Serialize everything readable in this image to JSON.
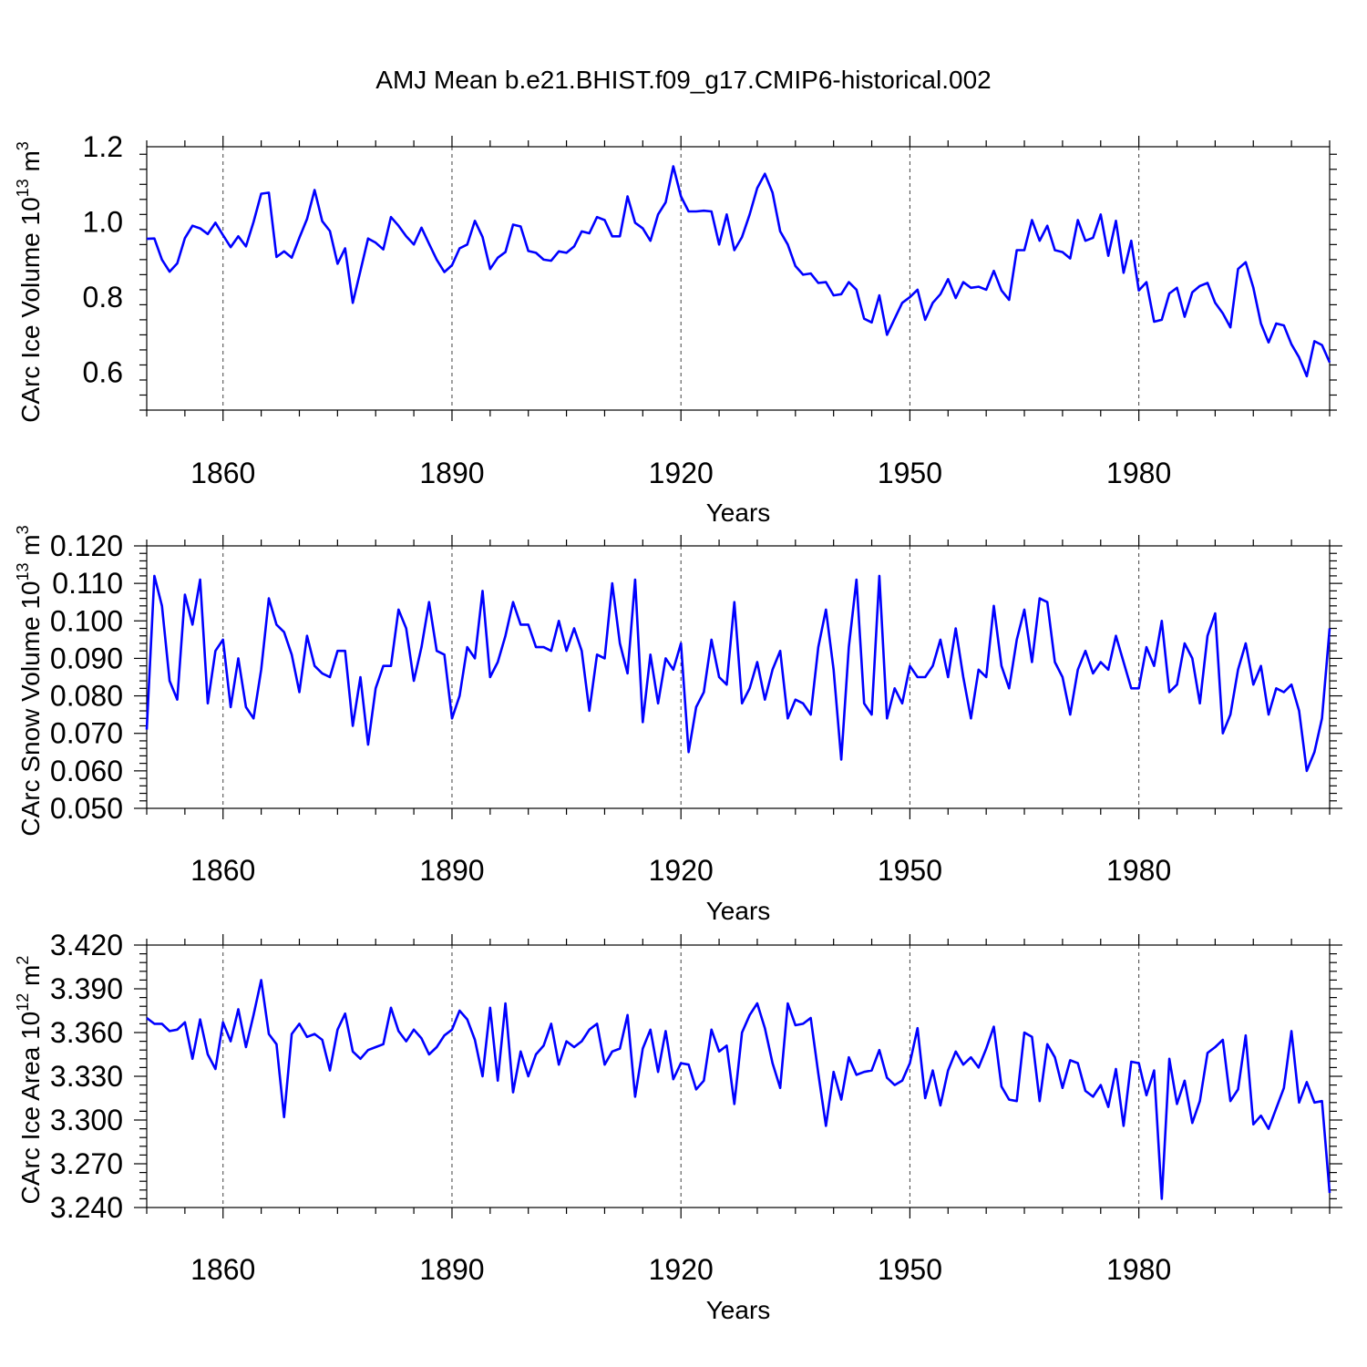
{
  "title": "AMJ Mean b.e21.BHIST.f09_g17.CMIP6-historical.002",
  "chart_data": [
    {
      "type": "line",
      "title": "AMJ Mean b.e21.BHIST.f09_g17.CMIP6-historical.002",
      "xlabel": "Years",
      "ylabel": "CArc Ice Volume 10",
      "ylabel_sup1": "13",
      "ylabel_mid": " m",
      "ylabel_sup2": "3",
      "xlim": [
        1850,
        2005
      ],
      "ylim": [
        0.5,
        1.2
      ],
      "grid": "x-dashed",
      "x_ticks": [
        1860,
        1890,
        1920,
        1950,
        1980
      ],
      "x_tick_labels": [
        "1860",
        "1890",
        "1920",
        "1950",
        "1980"
      ],
      "y_ticks": [
        0.6,
        0.8,
        1.0,
        1.2
      ],
      "y_tick_labels": [
        "0.6",
        "0.8",
        "1.0",
        "1.2"
      ],
      "series": [
        {
          "name": "AMJ Mean",
          "color": "#0000ff",
          "x_start": 1850,
          "values": [
            0.955,
            0.956,
            0.9,
            0.868,
            0.89,
            0.957,
            0.99,
            0.983,
            0.968,
            0.998,
            0.965,
            0.933,
            0.962,
            0.935,
            1.0,
            1.075,
            1.078,
            0.907,
            0.922,
            0.905,
            0.958,
            1.008,
            1.085,
            1.002,
            0.976,
            0.889,
            0.93,
            0.785,
            0.87,
            0.956,
            0.945,
            0.927,
            1.013,
            0.99,
            0.962,
            0.94,
            0.985,
            0.942,
            0.9,
            0.867,
            0.885,
            0.93,
            0.94,
            1.003,
            0.96,
            0.875,
            0.905,
            0.92,
            0.993,
            0.988,
            0.923,
            0.918,
            0.9,
            0.897,
            0.922,
            0.918,
            0.935,
            0.975,
            0.97,
            1.013,
            1.005,
            0.962,
            0.962,
            1.068,
            0.998,
            0.983,
            0.95,
            1.02,
            1.052,
            1.148,
            1.068,
            1.028,
            1.028,
            1.03,
            1.028,
            0.94,
            1.02,
            0.925,
            0.96,
            1.02,
            1.09,
            1.128,
            1.078,
            0.975,
            0.94,
            0.883,
            0.86,
            0.863,
            0.838,
            0.84,
            0.805,
            0.808,
            0.84,
            0.82,
            0.743,
            0.733,
            0.805,
            0.7,
            0.743,
            0.785,
            0.8,
            0.82,
            0.74,
            0.785,
            0.808,
            0.848,
            0.798,
            0.84,
            0.825,
            0.828,
            0.82,
            0.87,
            0.818,
            0.793,
            0.925,
            0.925,
            1.005,
            0.95,
            0.99,
            0.925,
            0.92,
            0.903,
            1.005,
            0.95,
            0.958,
            1.02,
            0.91,
            1.003,
            0.865,
            0.95,
            0.818,
            0.84,
            0.735,
            0.74,
            0.81,
            0.825,
            0.748,
            0.813,
            0.83,
            0.838,
            0.785,
            0.757,
            0.72,
            0.875,
            0.893,
            0.825,
            0.73,
            0.68,
            0.73,
            0.725,
            0.675,
            0.64,
            0.59,
            0.683,
            0.673,
            0.627
          ]
        }
      ]
    },
    {
      "type": "line",
      "xlabel": "Years",
      "ylabel": "CArc Snow Volume 10",
      "ylabel_sup1": "13",
      "ylabel_mid": " m",
      "ylabel_sup2": "3",
      "xlim": [
        1850,
        2005
      ],
      "ylim": [
        0.05,
        0.12
      ],
      "grid": "x-dashed",
      "x_ticks": [
        1860,
        1890,
        1920,
        1950,
        1980
      ],
      "x_tick_labels": [
        "1860",
        "1890",
        "1920",
        "1950",
        "1980"
      ],
      "y_ticks": [
        0.05,
        0.06,
        0.07,
        0.08,
        0.09,
        0.1,
        0.11,
        0.12
      ],
      "y_tick_labels": [
        "0.050",
        "0.060",
        "0.070",
        "0.080",
        "0.090",
        "0.100",
        "0.110",
        "0.120"
      ],
      "series": [
        {
          "name": "AMJ Mean",
          "color": "#0000ff",
          "x_start": 1850,
          "values": [
            0.071,
            0.112,
            0.104,
            0.084,
            0.079,
            0.107,
            0.099,
            0.111,
            0.078,
            0.092,
            0.095,
            0.077,
            0.09,
            0.077,
            0.074,
            0.087,
            0.106,
            0.099,
            0.097,
            0.091,
            0.081,
            0.096,
            0.088,
            0.086,
            0.085,
            0.092,
            0.092,
            0.072,
            0.085,
            0.067,
            0.082,
            0.088,
            0.088,
            0.103,
            0.098,
            0.084,
            0.093,
            0.105,
            0.092,
            0.091,
            0.074,
            0.08,
            0.093,
            0.09,
            0.108,
            0.085,
            0.089,
            0.096,
            0.105,
            0.099,
            0.099,
            0.093,
            0.093,
            0.092,
            0.1,
            0.092,
            0.098,
            0.092,
            0.076,
            0.091,
            0.09,
            0.11,
            0.094,
            0.086,
            0.111,
            0.073,
            0.091,
            0.078,
            0.09,
            0.087,
            0.094,
            0.065,
            0.077,
            0.081,
            0.095,
            0.085,
            0.083,
            0.105,
            0.078,
            0.082,
            0.089,
            0.079,
            0.087,
            0.092,
            0.074,
            0.079,
            0.078,
            0.075,
            0.093,
            0.103,
            0.087,
            0.063,
            0.093,
            0.111,
            0.078,
            0.075,
            0.112,
            0.074,
            0.082,
            0.078,
            0.088,
            0.085,
            0.085,
            0.088,
            0.095,
            0.085,
            0.098,
            0.085,
            0.074,
            0.087,
            0.085,
            0.104,
            0.088,
            0.082,
            0.095,
            0.103,
            0.089,
            0.106,
            0.105,
            0.089,
            0.085,
            0.075,
            0.087,
            0.092,
            0.086,
            0.089,
            0.087,
            0.096,
            0.089,
            0.082,
            0.082,
            0.093,
            0.088,
            0.1,
            0.081,
            0.083,
            0.094,
            0.09,
            0.078,
            0.096,
            0.102,
            0.07,
            0.075,
            0.087,
            0.094,
            0.083,
            0.088,
            0.075,
            0.082,
            0.081,
            0.083,
            0.076,
            0.06,
            0.065,
            0.074,
            0.098
          ]
        }
      ]
    },
    {
      "type": "line",
      "xlabel": "Years",
      "ylabel": "CArc Ice Area 10",
      "ylabel_sup1": "12",
      "ylabel_mid": " m",
      "ylabel_sup2": "2",
      "xlim": [
        1850,
        2005
      ],
      "ylim": [
        3.24,
        3.42
      ],
      "grid": "x-dashed",
      "x_ticks": [
        1860,
        1890,
        1920,
        1950,
        1980
      ],
      "x_tick_labels": [
        "1860",
        "1890",
        "1920",
        "1950",
        "1980"
      ],
      "y_ticks": [
        3.24,
        3.27,
        3.3,
        3.33,
        3.36,
        3.39,
        3.42
      ],
      "y_tick_labels": [
        "3.240",
        "3.270",
        "3.300",
        "3.330",
        "3.360",
        "3.390",
        "3.420"
      ],
      "series": [
        {
          "name": "AMJ Mean",
          "color": "#0000ff",
          "x_start": 1850,
          "values": [
            3.37,
            3.366,
            3.366,
            3.361,
            3.362,
            3.367,
            3.342,
            3.369,
            3.345,
            3.335,
            3.367,
            3.354,
            3.376,
            3.35,
            3.372,
            3.396,
            3.359,
            3.352,
            3.302,
            3.359,
            3.366,
            3.357,
            3.359,
            3.355,
            3.334,
            3.362,
            3.373,
            3.347,
            3.342,
            3.348,
            3.35,
            3.352,
            3.377,
            3.361,
            3.354,
            3.362,
            3.356,
            3.345,
            3.35,
            3.358,
            3.362,
            3.375,
            3.369,
            3.355,
            3.33,
            3.377,
            3.327,
            3.38,
            3.319,
            3.347,
            3.33,
            3.345,
            3.351,
            3.366,
            3.338,
            3.354,
            3.35,
            3.354,
            3.362,
            3.366,
            3.338,
            3.347,
            3.349,
            3.372,
            3.316,
            3.349,
            3.362,
            3.333,
            3.361,
            3.328,
            3.339,
            3.338,
            3.321,
            3.327,
            3.362,
            3.347,
            3.351,
            3.311,
            3.36,
            3.372,
            3.38,
            3.363,
            3.339,
            3.322,
            3.38,
            3.365,
            3.366,
            3.37,
            3.332,
            3.296,
            3.333,
            3.314,
            3.343,
            3.331,
            3.333,
            3.334,
            3.348,
            3.329,
            3.324,
            3.327,
            3.339,
            3.363,
            3.315,
            3.334,
            3.31,
            3.334,
            3.347,
            3.338,
            3.343,
            3.336,
            3.349,
            3.364,
            3.323,
            3.314,
            3.313,
            3.36,
            3.357,
            3.313,
            3.352,
            3.343,
            3.322,
            3.341,
            3.339,
            3.32,
            3.316,
            3.324,
            3.309,
            3.335,
            3.296,
            3.34,
            3.339,
            3.317,
            3.334,
            3.246,
            3.342,
            3.311,
            3.327,
            3.298,
            3.313,
            3.346,
            3.35,
            3.355,
            3.313,
            3.321,
            3.358,
            3.297,
            3.303,
            3.294,
            3.308,
            3.322,
            3.361,
            3.312,
            3.326,
            3.312,
            3.313,
            3.25
          ]
        }
      ]
    }
  ]
}
